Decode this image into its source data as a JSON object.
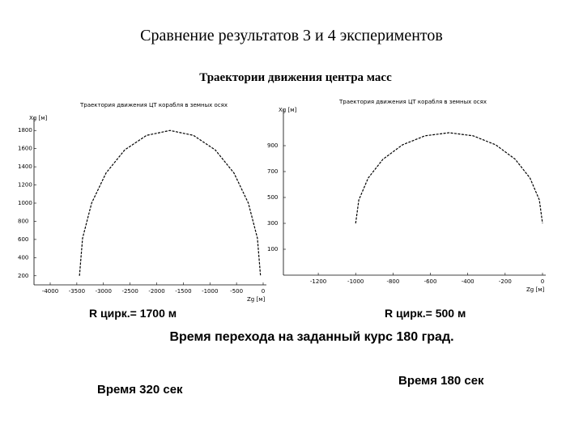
{
  "slide": {
    "title": "Сравнение результатов 3 и 4 экспериментов",
    "subtitle": "Траектории движения центра масс",
    "radius_left": "R цирк.= 1700 м",
    "radius_right": "R цирк.= 500 м",
    "caption": "Время перехода на заданный курс 180 град.",
    "time_left": "Время 320 сек",
    "time_right": "Время 180 сек"
  },
  "chart_data": [
    {
      "type": "line",
      "title": "Траектория движения ЦТ корабля в земных осях",
      "x_label": "Zg [м]",
      "y_label": "Xg [м]",
      "x": [
        -3450,
        -3392,
        -3222,
        -2952,
        -2600,
        -2190,
        -1750,
        -1310,
        -900,
        -548,
        -278,
        -108,
        -50
      ],
      "values": [
        200,
        614,
        1000,
        1331,
        1586,
        1746,
        1800,
        1746,
        1586,
        1331,
        1000,
        614,
        200
      ],
      "color": "#000000",
      "xlim": [
        -4000,
        0
      ],
      "ylim": [
        100,
        1900
      ],
      "xticks": [
        -4000,
        -3500,
        -3000,
        -2500,
        -2000,
        -1500,
        -1000,
        -500,
        0
      ],
      "yticks": [
        200,
        400,
        600,
        800,
        1000,
        1200,
        1400,
        1600,
        1800
      ]
    },
    {
      "type": "line",
      "title": "Траектория движения ЦТ корабля в земных осях",
      "x_label": "Zg [м]",
      "y_label": "Xg [м]",
      "x": [
        -1000,
        -983,
        -933,
        -854,
        -750,
        -629,
        -500,
        -371,
        -250,
        -146,
        -67,
        -17,
        0
      ],
      "values": [
        300,
        481,
        650,
        795,
        906,
        976,
        1000,
        976,
        906,
        795,
        650,
        481,
        300
      ],
      "color": "#000000",
      "xlim": [
        -1300,
        0
      ],
      "ylim": [
        -100,
        1150
      ],
      "xticks": [
        -1200,
        -1000,
        -800,
        -600,
        -400,
        -200,
        0
      ],
      "yticks": [
        100,
        300,
        500,
        700,
        900
      ]
    }
  ]
}
